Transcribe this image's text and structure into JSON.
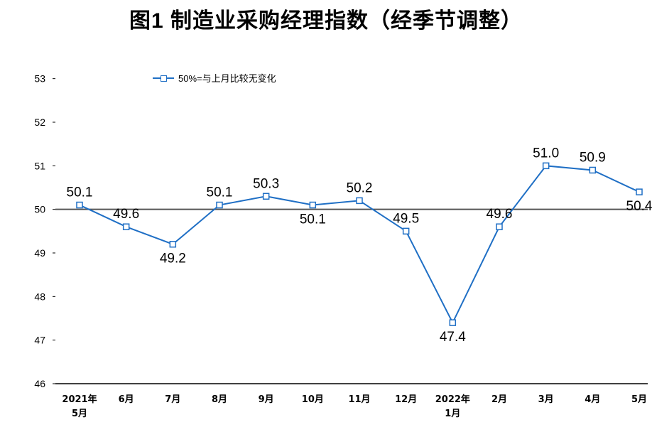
{
  "page": {
    "title": "图1  制造业采购经理指数（经季节调整）",
    "legend_label": "50%=与上月比较无变化"
  },
  "chart_data": {
    "type": "line",
    "title": "图1  制造业采购经理指数（经季节调整）",
    "categories": [
      [
        "2021年",
        "5月"
      ],
      [
        "6月"
      ],
      [
        "7月"
      ],
      [
        "8月"
      ],
      [
        "9月"
      ],
      [
        "10月"
      ],
      [
        "11月"
      ],
      [
        "12月"
      ],
      [
        "2022年",
        "1月"
      ],
      [
        "2月"
      ],
      [
        "3月"
      ],
      [
        "4月"
      ],
      [
        "5月"
      ]
    ],
    "series": [
      {
        "values": [
          50.1,
          49.6,
          49.2,
          50.1,
          50.3,
          50.1,
          50.2,
          49.5,
          47.4,
          49.6,
          51.0,
          50.9,
          50.4
        ],
        "color": "#1f6fc5"
      }
    ],
    "data_labels": [
      "50.1",
      "49.6",
      "49.2",
      "50.1",
      "50.3",
      "50.1",
      "50.2",
      "49.5",
      "47.4",
      "49.6",
      "51.0",
      "50.9",
      "50.4"
    ],
    "yticks": [
      46,
      47,
      48,
      49,
      50,
      51,
      52,
      53
    ],
    "ylim": [
      46,
      53.5
    ],
    "reference_line": 50,
    "xlabel": "",
    "ylabel": ""
  }
}
